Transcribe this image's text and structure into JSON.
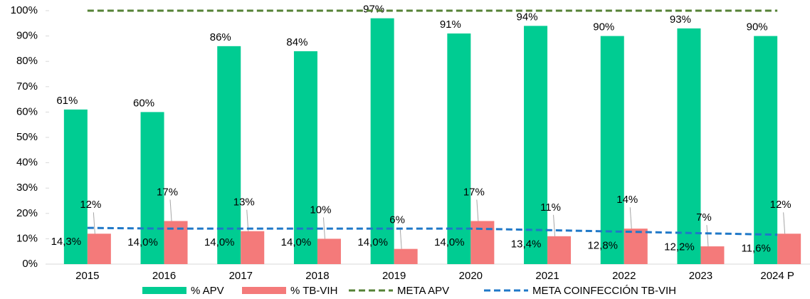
{
  "chart_data": {
    "type": "bar",
    "categories": [
      "2015",
      "2016",
      "2017",
      "2018",
      "2019",
      "2020",
      "2021",
      "2022",
      "2023",
      "2024 P"
    ],
    "series": [
      {
        "name": "% APV",
        "type": "bar",
        "color": "#00cc92",
        "values": [
          61,
          60,
          86,
          84,
          97,
          91,
          94,
          90,
          93,
          90
        ],
        "value_labels": [
          "61%",
          "60%",
          "86%",
          "84%",
          "97%",
          "91%",
          "94%",
          "90%",
          "93%",
          "90%"
        ]
      },
      {
        "name": "% TB-VIH",
        "type": "bar",
        "color": "#f47a7a",
        "values": [
          12,
          17,
          13,
          10,
          6,
          17,
          11,
          14,
          7,
          12
        ],
        "value_labels": [
          "12%",
          "17%",
          "13%",
          "10%",
          "6%",
          "17%",
          "11%",
          "14%",
          "7%",
          "12%"
        ]
      },
      {
        "name": "META APV",
        "type": "line",
        "dashed": true,
        "color": "#548235",
        "values": [
          100,
          100,
          100,
          100,
          100,
          100,
          100,
          100,
          100,
          100
        ]
      },
      {
        "name": "META COINFECCIÓN TB-VIH",
        "type": "line",
        "dashed": true,
        "color": "#1f78c8",
        "values": [
          14.3,
          14.0,
          14.0,
          14.0,
          14.0,
          14.0,
          13.4,
          12.8,
          12.2,
          11.6
        ],
        "value_labels": [
          "14,3%",
          "14,0%",
          "14,0%",
          "14,0%",
          "14,0%",
          "14,0%",
          "13,4%",
          "12,8%",
          "12,2%",
          "11,6%"
        ]
      }
    ],
    "ylim": [
      0,
      100
    ],
    "yticks": [
      {
        "value": 0,
        "label": "0%"
      },
      {
        "value": 10,
        "label": "10%"
      },
      {
        "value": 20,
        "label": "20%"
      },
      {
        "value": 30,
        "label": "30%"
      },
      {
        "value": 40,
        "label": "40%"
      },
      {
        "value": 50,
        "label": "50%"
      },
      {
        "value": 60,
        "label": "60%"
      },
      {
        "value": 70,
        "label": "70%"
      },
      {
        "value": 80,
        "label": "80%"
      },
      {
        "value": 90,
        "label": "90%"
      },
      {
        "value": 100,
        "label": "100%"
      }
    ],
    "legend": "bottom"
  }
}
